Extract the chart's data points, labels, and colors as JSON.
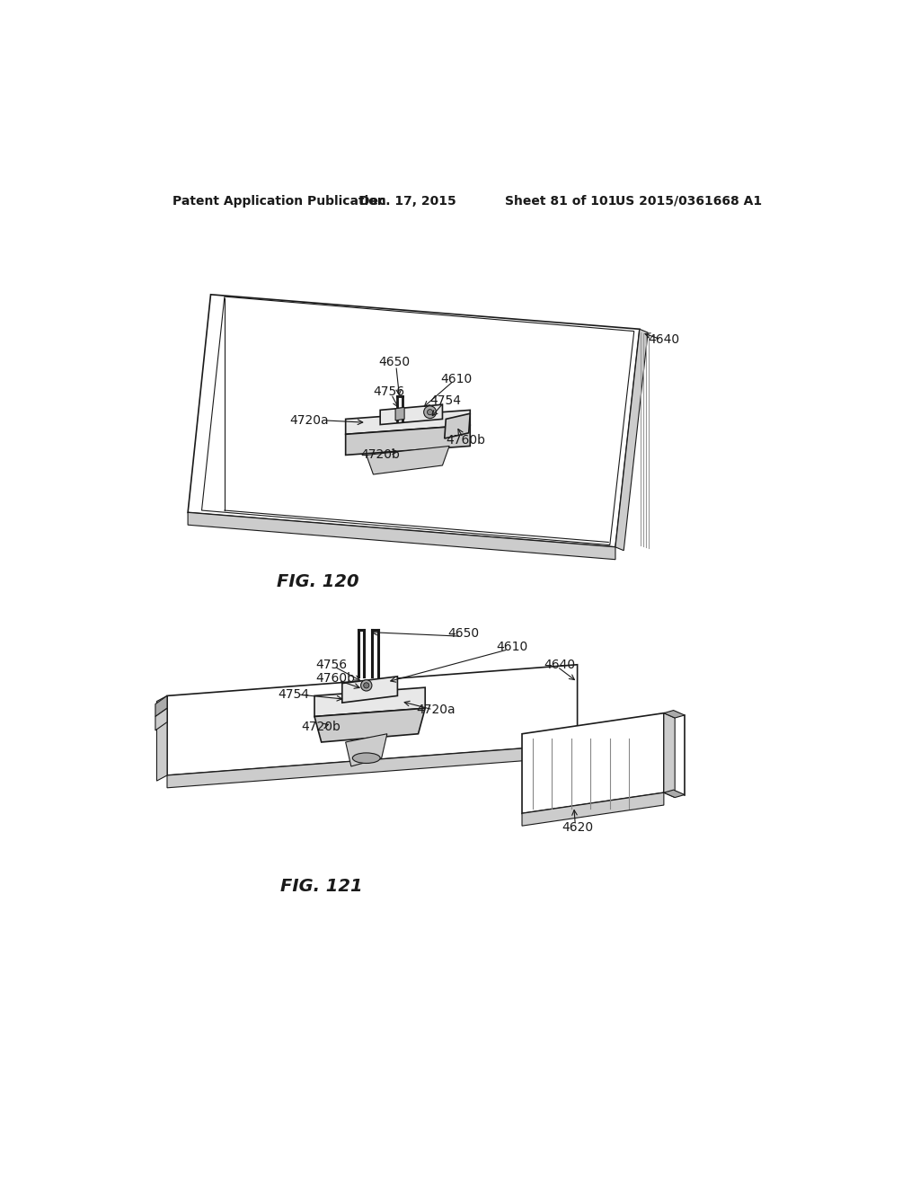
{
  "bg_color": "#ffffff",
  "header_text": "Patent Application Publication",
  "header_date": "Dec. 17, 2015",
  "header_sheet": "Sheet 81 of 101",
  "header_patent": "US 2015/0361668 A1",
  "fig120_caption": "FIG. 120",
  "fig121_caption": "FIG. 121",
  "line_color": "#1a1a1a",
  "gray_light": "#e8e8e8",
  "gray_mid": "#cccccc",
  "gray_dark": "#aaaaaa",
  "label_fontsize": 10,
  "caption_fontsize": 14,
  "header_fontsize": 11
}
